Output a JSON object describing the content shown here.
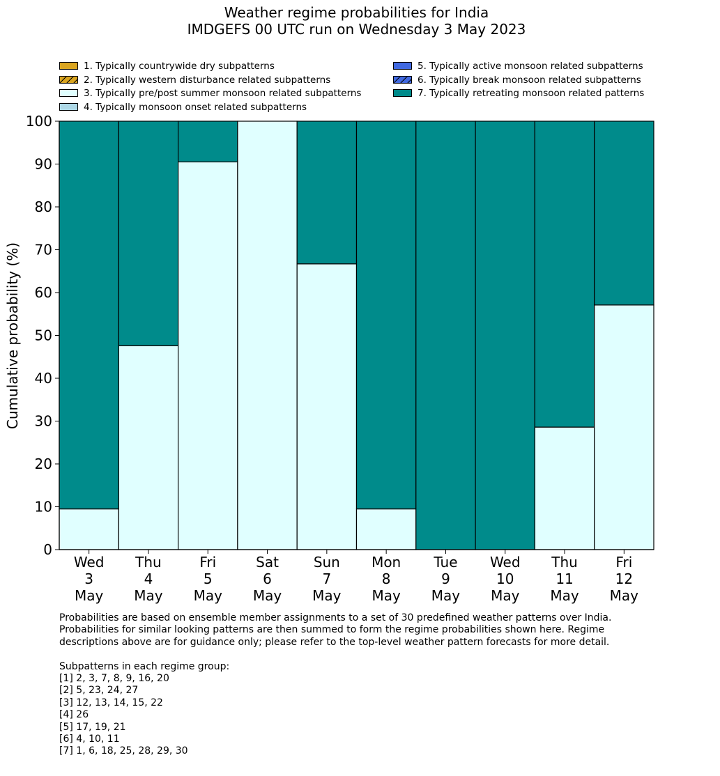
{
  "title": {
    "line1": "Weather regime probabilities for India",
    "line2": "IMDGEFS 00 UTC run on Wednesday 3 May 2023"
  },
  "legend": [
    {
      "label": "1. Typically countrywide dry subpatterns",
      "color": "#daa520",
      "hatch": false
    },
    {
      "label": "2. Typically western disturbance related subpatterns",
      "color": "#daa520",
      "hatch": true
    },
    {
      "label": "3. Typically pre/post summer monsoon related subpatterns",
      "color": "#e0ffff",
      "hatch": false
    },
    {
      "label": "4. Typically monsoon onset related subpatterns",
      "color": "#add8e6",
      "hatch": false
    },
    {
      "label": "5. Typically active monsoon related subpatterns",
      "color": "#4169e1",
      "hatch": false
    },
    {
      "label": "6. Typically break monsoon related subpatterns",
      "color": "#4169e1",
      "hatch": true
    },
    {
      "label": "7. Typically retreating monsoon related patterns",
      "color": "#008b8b",
      "hatch": false
    }
  ],
  "chart_data": {
    "type": "bar",
    "stacked": true,
    "categories": [
      [
        "Wed",
        "3",
        "May"
      ],
      [
        "Thu",
        "4",
        "May"
      ],
      [
        "Fri",
        "5",
        "May"
      ],
      [
        "Sat",
        "6",
        "May"
      ],
      [
        "Sun",
        "7",
        "May"
      ],
      [
        "Mon",
        "8",
        "May"
      ],
      [
        "Tue",
        "9",
        "May"
      ],
      [
        "Wed",
        "10",
        "May"
      ],
      [
        "Thu",
        "11",
        "May"
      ],
      [
        "Fri",
        "12",
        "May"
      ]
    ],
    "series": [
      {
        "name": "3. Typically pre/post summer monsoon related subpatterns",
        "color": "#e0ffff",
        "values": [
          9.5,
          47.6,
          90.5,
          100,
          66.7,
          9.5,
          0,
          0,
          28.6,
          57.1
        ]
      },
      {
        "name": "7. Typically retreating monsoon related patterns",
        "color": "#008b8b",
        "values": [
          90.5,
          52.4,
          9.5,
          0,
          33.3,
          90.5,
          100,
          100,
          71.4,
          42.9
        ]
      }
    ],
    "ylabel": "Cumulative probability (%)",
    "ylim": [
      0,
      100
    ],
    "yticks": [
      0,
      10,
      20,
      30,
      40,
      50,
      60,
      70,
      80,
      90,
      100
    ],
    "grid": false,
    "legend_position": "top"
  },
  "footnote": {
    "lines": [
      "Probabilities are based on ensemble member assignments to a set of 30 predefined weather patterns over India.",
      "Probabilities for similar looking patterns are then summed to form the regime probabilities shown here. Regime",
      "descriptions above are for guidance only; please refer to the top-level weather pattern forecasts for more detail.",
      "",
      "Subpatterns in each regime group:",
      "[1] 2, 3, 7, 8, 9, 16, 20",
      "[2] 5, 23, 24, 27",
      "[3] 12, 13, 14, 15, 22",
      "[4] 26",
      "[5] 17, 19, 21",
      "[6] 4, 10, 11",
      "[7] 1, 6, 18, 25, 28, 29, 30"
    ]
  }
}
